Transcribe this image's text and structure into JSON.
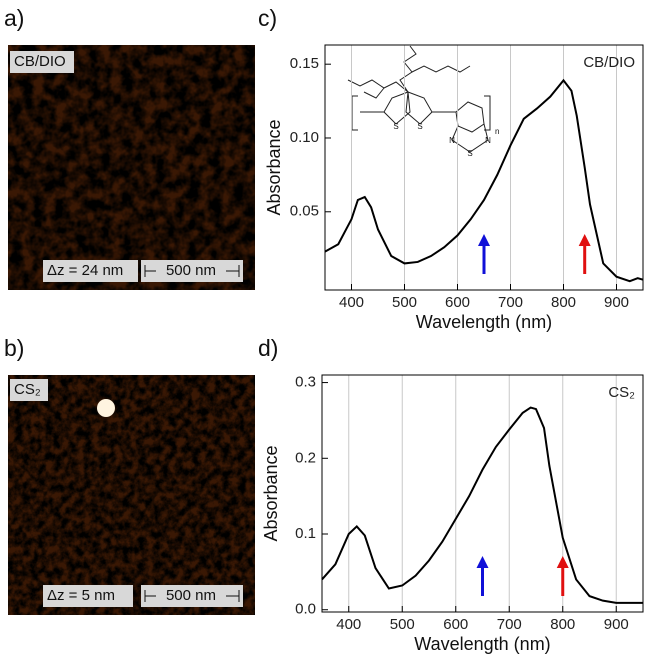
{
  "afm_images": [
    {
      "panel_label": "a)",
      "sample_label": "CB/DIO",
      "height_label": "Δz = 24 nm",
      "scale_label": "500 nm"
    },
    {
      "panel_label": "b)",
      "sample_label": "CS₂",
      "height_label": "Δz = 5 nm",
      "scale_label": "500 nm"
    }
  ],
  "chart_data": [
    {
      "type": "line",
      "panel_label": "c)",
      "annotation": "CB/DIO",
      "xlabel": "Wavelength (nm)",
      "ylabel": "Absorbance",
      "x": [
        350,
        375,
        400,
        412,
        425,
        437,
        450,
        475,
        500,
        525,
        550,
        575,
        600,
        625,
        650,
        675,
        700,
        725,
        750,
        775,
        800,
        815,
        825,
        840,
        850,
        875,
        900,
        925,
        940,
        950
      ],
      "series": [
        {
          "color": "#000000",
          "values": [
            0.023,
            0.028,
            0.045,
            0.058,
            0.06,
            0.053,
            0.038,
            0.02,
            0.015,
            0.016,
            0.02,
            0.026,
            0.034,
            0.045,
            0.058,
            0.075,
            0.095,
            0.113,
            0.12,
            0.128,
            0.139,
            0.132,
            0.115,
            0.08,
            0.055,
            0.015,
            0.006,
            0.003,
            0.005,
            0.004
          ]
        }
      ],
      "xlim": [
        350,
        950
      ],
      "ylim": [
        -0.003,
        0.163
      ],
      "xticks": [
        400,
        500,
        600,
        700,
        800,
        900
      ],
      "yticks": [
        0.05,
        {
          "value": 0.1,
          "label": "0.10"
        },
        0.15
      ],
      "grid": "x",
      "arrows": [
        {
          "x": 650,
          "color": "#1010d8"
        },
        {
          "x": 840,
          "color": "#e01010"
        }
      ],
      "structure_labels": [
        "S",
        "S",
        "N",
        "S",
        "N",
        "n"
      ]
    },
    {
      "type": "line",
      "panel_label": "d)",
      "annotation": "CS₂",
      "xlabel": "Wavelength (nm)",
      "ylabel": "Absorbance",
      "x": [
        350,
        375,
        400,
        415,
        430,
        450,
        475,
        500,
        525,
        550,
        575,
        600,
        625,
        650,
        675,
        700,
        725,
        740,
        750,
        765,
        775,
        800,
        825,
        850,
        875,
        900,
        950
      ],
      "series": [
        {
          "color": "#000000",
          "values": [
            0.04,
            0.06,
            0.1,
            0.11,
            0.098,
            0.055,
            0.028,
            0.032,
            0.045,
            0.065,
            0.09,
            0.12,
            0.15,
            0.185,
            0.215,
            0.238,
            0.26,
            0.267,
            0.265,
            0.24,
            0.19,
            0.095,
            0.04,
            0.018,
            0.012,
            0.009,
            0.009
          ]
        }
      ],
      "xlim": [
        350,
        950
      ],
      "ylim": [
        -0.003,
        0.31
      ],
      "xticks": [
        400,
        500,
        600,
        700,
        800,
        900
      ],
      "yticks": [
        {
          "value": 0,
          "label": "0.0"
        },
        0.1,
        0.2,
        0.3
      ],
      "grid": "x",
      "arrows": [
        {
          "x": 650,
          "color": "#1010d8"
        },
        {
          "x": 800,
          "color": "#e01010"
        }
      ]
    }
  ]
}
